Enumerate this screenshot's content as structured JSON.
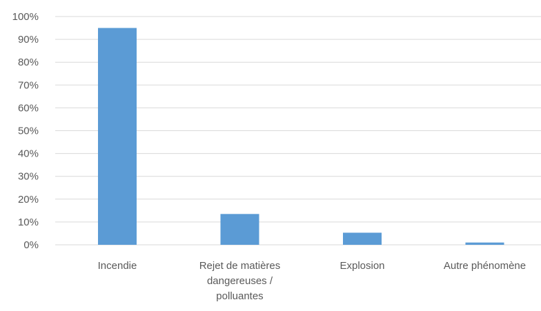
{
  "chart_data": {
    "type": "bar",
    "categories": [
      [
        "Incendie"
      ],
      [
        "Rejet de matières",
        "dangereuses /",
        "polluantes"
      ],
      [
        "Explosion"
      ],
      [
        "Autre phénomène"
      ]
    ],
    "values": [
      95,
      13.5,
      5.3,
      1.0
    ],
    "ylim": [
      0,
      100
    ],
    "yticks": [
      "0%",
      "10%",
      "20%",
      "30%",
      "40%",
      "50%",
      "60%",
      "70%",
      "80%",
      "90%",
      "100%"
    ],
    "grid": true,
    "colors": {
      "bar": "#5b9bd5",
      "grid": "#d9d9d9",
      "text": "#595959"
    }
  }
}
